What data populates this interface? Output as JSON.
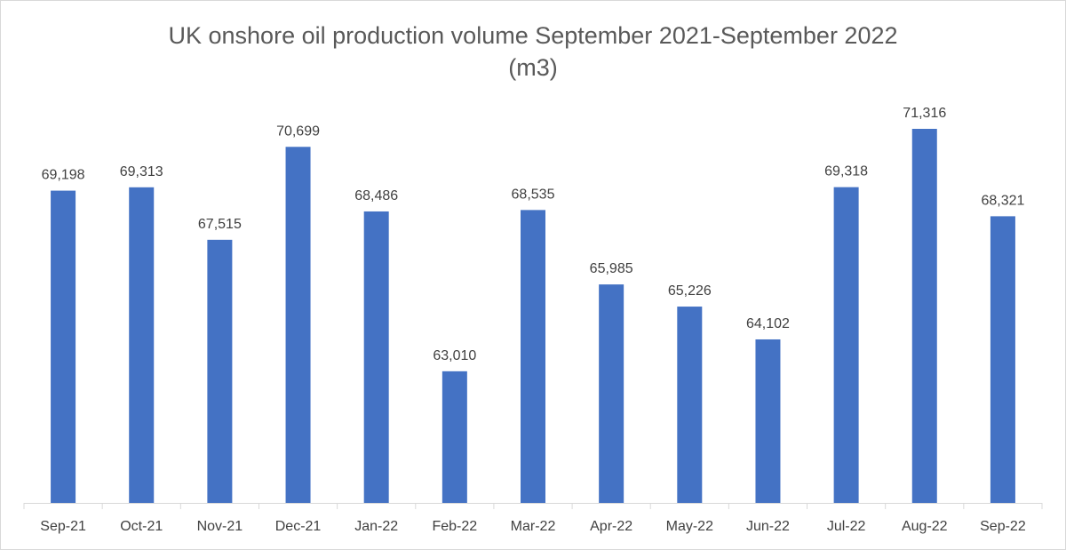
{
  "chart_data": {
    "type": "bar",
    "title_line1": "UK onshore oil production volume September 2021-September 2022",
    "title_line2": "(m3)",
    "categories": [
      "Sep-21",
      "Oct-21",
      "Nov-21",
      "Dec-21",
      "Jan-22",
      "Feb-22",
      "Mar-22",
      "Apr-22",
      "May-22",
      "Jun-22",
      "Jul-22",
      "Aug-22",
      "Sep-22"
    ],
    "values": [
      69198,
      69313,
      67515,
      70699,
      68486,
      63010,
      68535,
      65985,
      65226,
      64102,
      69318,
      71316,
      68321
    ],
    "data_labels": [
      "69,198",
      "69,313",
      "67,515",
      "70,699",
      "68,486",
      "63,010",
      "68,535",
      "65,985",
      "65,226",
      "64,102",
      "69,318",
      "71,316",
      "68,321"
    ],
    "xlabel": "",
    "ylabel": "",
    "ylim": [
      58500,
      72500
    ],
    "grid": false,
    "legend": false,
    "bar_color": "#4472c4"
  }
}
